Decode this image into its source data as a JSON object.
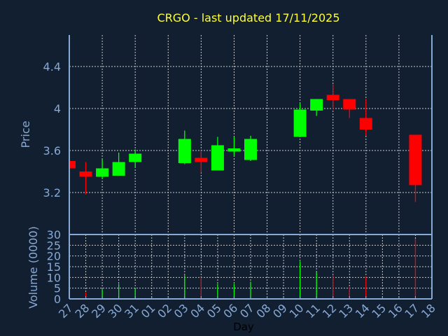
{
  "chart_data": {
    "type": "candlestick",
    "title": "CRGO - last updated 17/11/2025",
    "xlabel": "Day",
    "ylabel": "Price",
    "volume_label": "Volume (0000)",
    "ylim": [
      2.8,
      4.7
    ],
    "yticks": [
      "4.4",
      "4",
      "3.6",
      "3.2"
    ],
    "ytick_values": [
      4.4,
      4.0,
      3.6,
      3.2
    ],
    "volume_ylim": [
      0,
      30
    ],
    "volume_ticks": [
      "30",
      "25",
      "20",
      "15",
      "10",
      "5",
      "0"
    ],
    "x_ticks": [
      "27",
      "28",
      "29",
      "30",
      "31",
      "01",
      "02",
      "03",
      "04",
      "05",
      "06",
      "07",
      "08",
      "09",
      "10",
      "11",
      "12",
      "13",
      "14",
      "15",
      "16",
      "17",
      "18"
    ],
    "grid": true,
    "colors": {
      "up": "#00ff00",
      "down": "#ff0000",
      "background": "#111f30",
      "axis": "#87a9d6",
      "grid": "#c8c8c8",
      "title": "#ffff33"
    },
    "candles": [
      {
        "day": "27",
        "open": 3.5,
        "high": 3.5,
        "low": 3.43,
        "close": 3.43,
        "volume": null
      },
      {
        "day": "28",
        "open": 3.4,
        "high": 3.49,
        "low": 3.18,
        "close": 3.35,
        "volume": 3
      },
      {
        "day": "29",
        "open": 3.35,
        "high": 3.52,
        "low": 3.33,
        "close": 3.43,
        "volume": 4.5
      },
      {
        "day": "30",
        "open": 3.36,
        "high": 3.58,
        "low": 3.36,
        "close": 3.49,
        "volume": 7
      },
      {
        "day": "31",
        "open": 3.49,
        "high": 3.61,
        "low": 3.44,
        "close": 3.57,
        "volume": 5
      },
      {
        "day": "03",
        "open": 3.48,
        "high": 3.79,
        "low": 3.47,
        "close": 3.71,
        "volume": 11
      },
      {
        "day": "04",
        "open": 3.53,
        "high": 3.6,
        "low": 3.39,
        "close": 3.49,
        "volume": 10
      },
      {
        "day": "05",
        "open": 3.41,
        "high": 3.73,
        "low": 3.41,
        "close": 3.65,
        "volume": 7
      },
      {
        "day": "06",
        "open": 3.59,
        "high": 3.73,
        "low": 3.55,
        "close": 3.62,
        "volume": 7
      },
      {
        "day": "07",
        "open": 3.51,
        "high": 3.74,
        "low": 3.5,
        "close": 3.71,
        "volume": 8
      },
      {
        "day": "10",
        "open": 3.73,
        "high": 4.05,
        "low": 3.73,
        "close": 3.99,
        "volume": 17.5
      },
      {
        "day": "11",
        "open": 3.98,
        "high": 4.09,
        "low": 3.93,
        "close": 4.09,
        "volume": 12.5
      },
      {
        "day": "12",
        "open": 4.13,
        "high": 4.23,
        "low": 3.99,
        "close": 4.08,
        "volume": 11
      },
      {
        "day": "13",
        "open": 4.09,
        "high": 4.09,
        "low": 3.91,
        "close": 3.99,
        "volume": 5.5
      },
      {
        "day": "14",
        "open": 3.91,
        "high": 4.09,
        "low": 3.74,
        "close": 3.8,
        "volume": 10.5
      },
      {
        "day": "17",
        "open": 3.75,
        "high": 3.75,
        "low": 3.11,
        "close": 3.27,
        "volume": 28
      }
    ]
  }
}
